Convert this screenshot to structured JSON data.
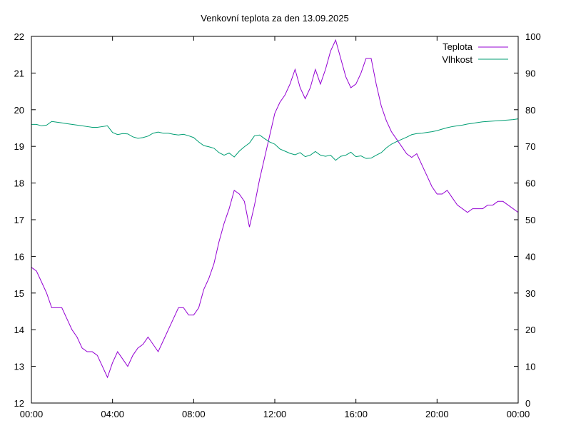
{
  "chart_data": {
    "type": "line",
    "title": "Venkovní teplota za den 13.09.2025",
    "xlabel": "",
    "ylabel": "",
    "y2label": "",
    "x_range_hours": [
      0,
      24
    ],
    "x_ticks": [
      {
        "hour": 0,
        "label": "00:00"
      },
      {
        "hour": 4,
        "label": "04:00"
      },
      {
        "hour": 8,
        "label": "08:00"
      },
      {
        "hour": 12,
        "label": "12:00"
      },
      {
        "hour": 16,
        "label": "16:00"
      },
      {
        "hour": 20,
        "label": "20:00"
      },
      {
        "hour": 24,
        "label": "00:00"
      }
    ],
    "ylim": [
      12,
      22
    ],
    "y_ticks": [
      12,
      13,
      14,
      15,
      16,
      17,
      18,
      19,
      20,
      21,
      22
    ],
    "y2lim": [
      0,
      100
    ],
    "y2_ticks": [
      0,
      10,
      20,
      30,
      40,
      50,
      60,
      70,
      80,
      90,
      100
    ],
    "grid": false,
    "legend_position": "top-right",
    "series": [
      {
        "name": "Teplota",
        "axis": "left",
        "color": "#9400d3",
        "x": [
          0.0,
          0.25,
          0.5,
          0.75,
          1.0,
          1.25,
          1.5,
          1.75,
          2.0,
          2.25,
          2.5,
          2.75,
          3.0,
          3.25,
          3.5,
          3.75,
          4.0,
          4.25,
          4.5,
          4.75,
          5.0,
          5.25,
          5.5,
          5.75,
          6.0,
          6.25,
          6.5,
          6.75,
          7.0,
          7.25,
          7.5,
          7.75,
          8.0,
          8.25,
          8.5,
          8.75,
          9.0,
          9.25,
          9.5,
          9.75,
          10.0,
          10.25,
          10.5,
          10.75,
          11.0,
          11.25,
          11.5,
          11.75,
          12.0,
          12.25,
          12.5,
          12.75,
          13.0,
          13.25,
          13.5,
          13.75,
          14.0,
          14.25,
          14.5,
          14.75,
          15.0,
          15.25,
          15.5,
          15.75,
          16.0,
          16.25,
          16.5,
          16.75,
          17.0,
          17.25,
          17.5,
          17.75,
          18.0,
          18.25,
          18.5,
          18.75,
          19.0,
          19.25,
          19.5,
          19.75,
          20.0,
          20.25,
          20.5,
          20.75,
          21.0,
          21.25,
          21.5,
          21.75,
          22.0,
          22.25,
          22.5,
          22.75,
          23.0,
          23.25,
          23.5,
          23.75,
          24.0
        ],
        "values": [
          15.7,
          15.6,
          15.3,
          15.0,
          14.6,
          14.6,
          14.6,
          14.3,
          14.0,
          13.8,
          13.5,
          13.4,
          13.4,
          13.3,
          13.0,
          12.7,
          13.1,
          13.4,
          13.2,
          13.0,
          13.3,
          13.5,
          13.6,
          13.8,
          13.6,
          13.4,
          13.7,
          14.0,
          14.3,
          14.6,
          14.6,
          14.4,
          14.4,
          14.6,
          15.1,
          15.4,
          15.8,
          16.4,
          16.9,
          17.3,
          17.8,
          17.7,
          17.5,
          16.8,
          17.4,
          18.1,
          18.7,
          19.3,
          19.9,
          20.2,
          20.4,
          20.7,
          21.1,
          20.6,
          20.3,
          20.6,
          21.1,
          20.7,
          21.1,
          21.6,
          21.9,
          21.4,
          20.9,
          20.6,
          20.7,
          21.0,
          21.4,
          21.4,
          20.7,
          20.1,
          19.7,
          19.4,
          19.2,
          19.0,
          18.8,
          18.7,
          18.8,
          18.5,
          18.2,
          17.9,
          17.7,
          17.7,
          17.8,
          17.6,
          17.4,
          17.3,
          17.2,
          17.3,
          17.3,
          17.3,
          17.4,
          17.4,
          17.5,
          17.5,
          17.4,
          17.3,
          17.2
        ]
      },
      {
        "name": "Vlhkost",
        "axis": "right",
        "color": "#009e73",
        "x": [
          0.0,
          0.25,
          0.5,
          0.75,
          1.0,
          1.25,
          1.5,
          1.75,
          2.0,
          2.25,
          2.5,
          2.75,
          3.0,
          3.25,
          3.5,
          3.75,
          4.0,
          4.25,
          4.5,
          4.75,
          5.0,
          5.25,
          5.5,
          5.75,
          6.0,
          6.25,
          6.5,
          6.75,
          7.0,
          7.25,
          7.5,
          7.75,
          8.0,
          8.25,
          8.5,
          8.75,
          9.0,
          9.25,
          9.5,
          9.75,
          10.0,
          10.25,
          10.5,
          10.75,
          11.0,
          11.25,
          11.5,
          11.75,
          12.0,
          12.25,
          12.5,
          12.75,
          13.0,
          13.25,
          13.5,
          13.75,
          14.0,
          14.25,
          14.5,
          14.75,
          15.0,
          15.25,
          15.5,
          15.75,
          16.0,
          16.25,
          16.5,
          16.75,
          17.0,
          17.25,
          17.5,
          17.75,
          18.0,
          18.25,
          18.5,
          18.75,
          19.0,
          19.25,
          19.5,
          19.75,
          20.0,
          20.25,
          20.5,
          20.75,
          21.0,
          21.25,
          21.5,
          21.75,
          22.0,
          22.25,
          22.5,
          22.75,
          23.0,
          23.25,
          23.5,
          23.75,
          24.0
        ],
        "values": [
          76,
          76,
          75.6,
          75.8,
          76.8,
          76.6,
          76.4,
          76.2,
          76,
          75.8,
          75.6,
          75.4,
          75.2,
          75.2,
          75.4,
          75.6,
          73.8,
          73.2,
          73.5,
          73.4,
          72.6,
          72.2,
          72.4,
          72.8,
          73.6,
          73.9,
          73.6,
          73.6,
          73.3,
          73.1,
          73.3,
          72.9,
          72.4,
          71.2,
          70.2,
          69.9,
          69.5,
          68.3,
          67.6,
          68.2,
          67.1,
          68.7,
          69.9,
          70.9,
          72.9,
          73.1,
          72.1,
          71.2,
          70.6,
          69.3,
          68.7,
          68.1,
          67.7,
          68.3,
          67.2,
          67.6,
          68.6,
          67.6,
          67.3,
          67.6,
          66.2,
          67.3,
          67.6,
          68.4,
          67.2,
          67.4,
          66.7,
          66.8,
          67.6,
          68.3,
          69.6,
          70.6,
          71.3,
          71.9,
          72.5,
          73.2,
          73.5,
          73.6,
          73.8,
          74.0,
          74.3,
          74.7,
          75.1,
          75.4,
          75.6,
          75.8,
          76.1,
          76.3,
          76.5,
          76.7,
          76.8,
          76.9,
          77.0,
          77.1,
          77.2,
          77.3,
          77.5
        ]
      }
    ]
  }
}
